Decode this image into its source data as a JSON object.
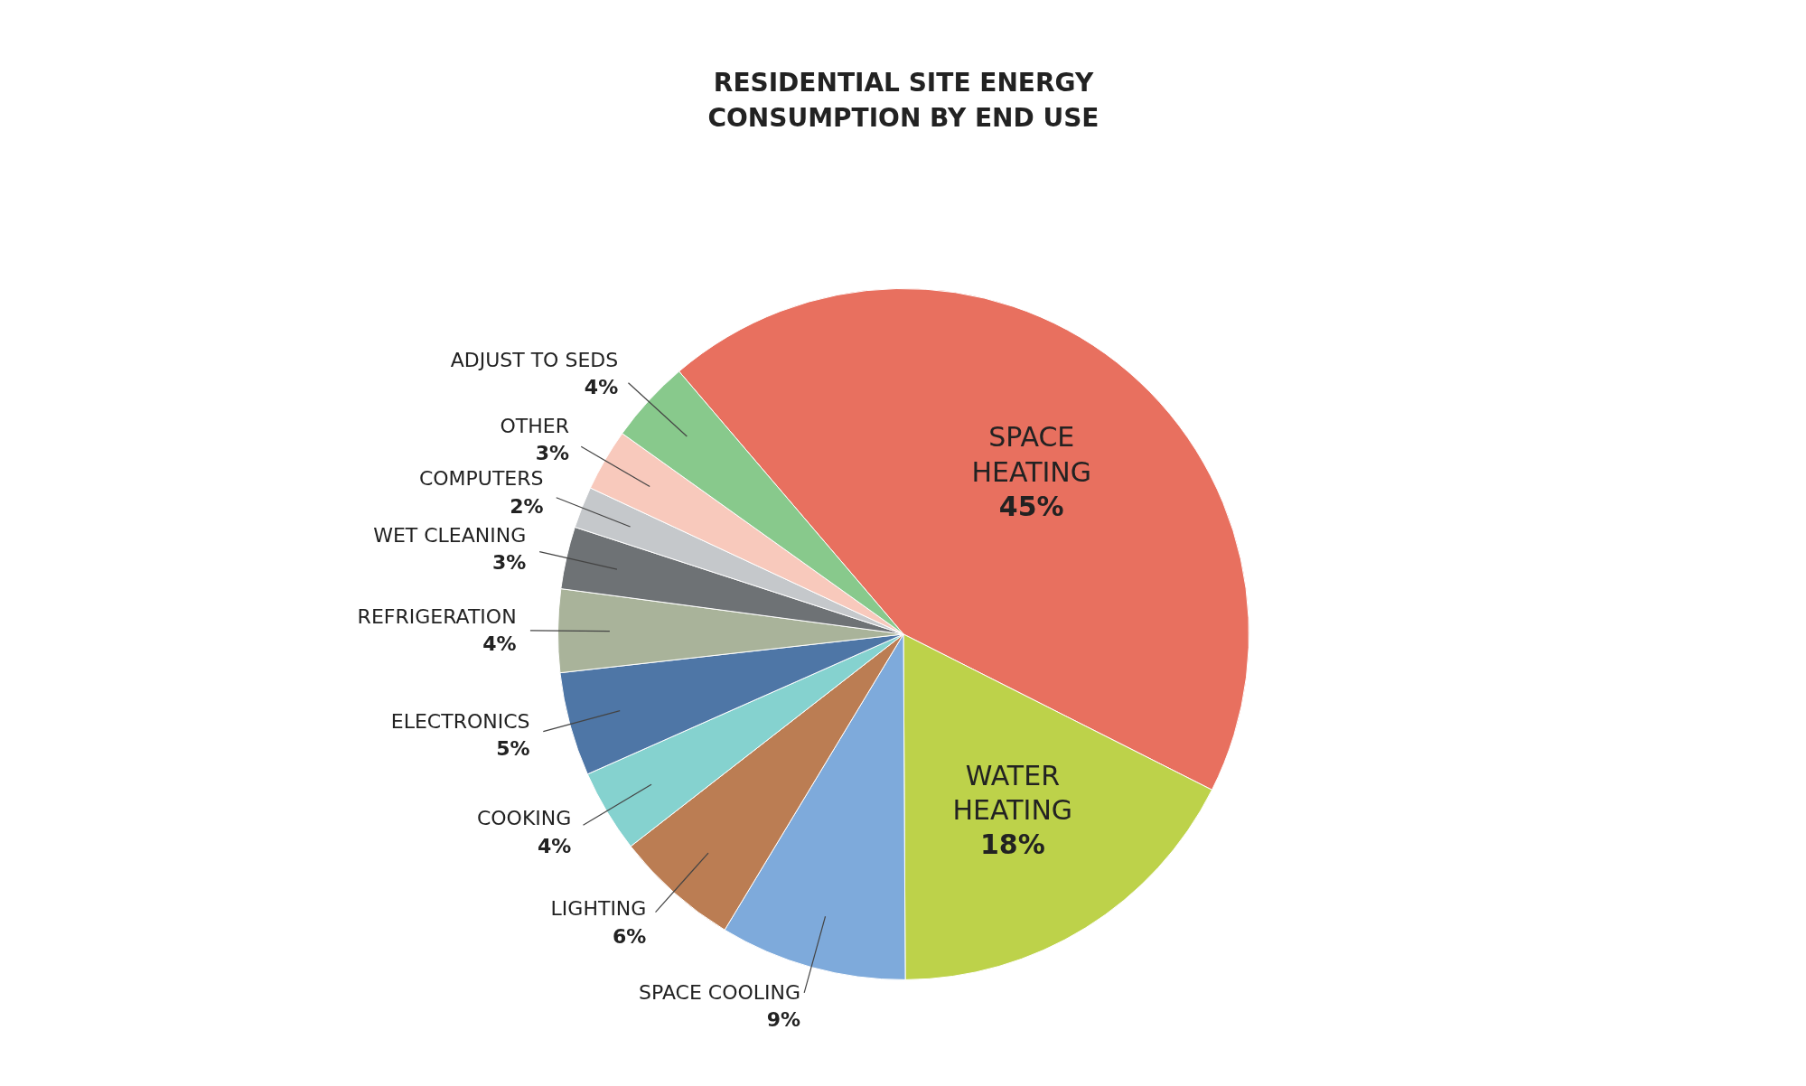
{
  "chart_data": {
    "type": "pie",
    "title": "RESIDENTIAL SITE ENERGY\nCONSUMPTION BY END USE",
    "categories": [
      "SPACE HEATING",
      "WATER HEATING",
      "SPACE COOLING",
      "LIGHTING",
      "COOKING",
      "ELECTRONICS",
      "REFRIGERATION",
      "WET CLEANING",
      "COMPUTERS",
      "OTHER",
      "ADJUST TO SEDS"
    ],
    "values": [
      45,
      18,
      9,
      6,
      4,
      5,
      4,
      3,
      2,
      3,
      4
    ],
    "value_labels": [
      "45%",
      "18%",
      "9%",
      "6%",
      "4%",
      "5%",
      "4%",
      "3%",
      "2%",
      "3%",
      "4%"
    ],
    "colors": [
      "#e8705f",
      "#bdd24a",
      "#7eaadb",
      "#bb7d53",
      "#85d2cf",
      "#4e76a6",
      "#a9b39a",
      "#6e7275",
      "#c5c8cb",
      "#f8c9bc",
      "#88c98c"
    ]
  }
}
